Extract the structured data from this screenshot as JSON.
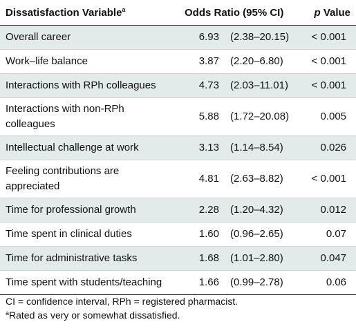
{
  "headers": {
    "variable": "Dissatisfaction Variable",
    "variable_sup": "a",
    "odds_ratio": "Odds Ratio (95% CI)",
    "p_italic": "p",
    "p_rest": " Value"
  },
  "rows": [
    {
      "variable": "Overall career",
      "or": "6.93",
      "ci": "(2.38–20.15)",
      "p": "< 0.001"
    },
    {
      "variable": "Work–life balance",
      "or": "3.87",
      "ci": "(2.20–6.80)",
      "p": "< 0.001"
    },
    {
      "variable": "Interactions with RPh colleagues",
      "or": "4.73",
      "ci": "(2.03–11.01)",
      "p": "< 0.001"
    },
    {
      "variable": "Interactions with non-RPh colleagues",
      "or": "5.88",
      "ci": "(1.72–20.08)",
      "p": "0.005"
    },
    {
      "variable": "Intellectual challenge at work",
      "or": "3.13",
      "ci": "(1.14–8.54)",
      "p": "0.026"
    },
    {
      "variable": "Feeling contributions are appreciated",
      "or": "4.81",
      "ci": "(2.63–8.82)",
      "p": "< 0.001"
    },
    {
      "variable": "Time for professional growth",
      "or": "2.28",
      "ci": "(1.20–4.32)",
      "p": "0.012"
    },
    {
      "variable": "Time spent in clinical duties",
      "or": "1.60",
      "ci": "(0.96–2.65)",
      "p": "0.07"
    },
    {
      "variable": "Time for administrative tasks",
      "or": "1.68",
      "ci": "(1.01–2.80)",
      "p": "0.047"
    },
    {
      "variable": "Time spent with students/teaching",
      "or": "1.66",
      "ci": "(0.99–2.78)",
      "p": "0.06"
    }
  ],
  "footnotes": {
    "abbreviations": "CI = confidence interval, RPh = registered pharmacist.",
    "a_marker": "a",
    "a_text": "Rated as very or somewhat dissatisfied."
  }
}
